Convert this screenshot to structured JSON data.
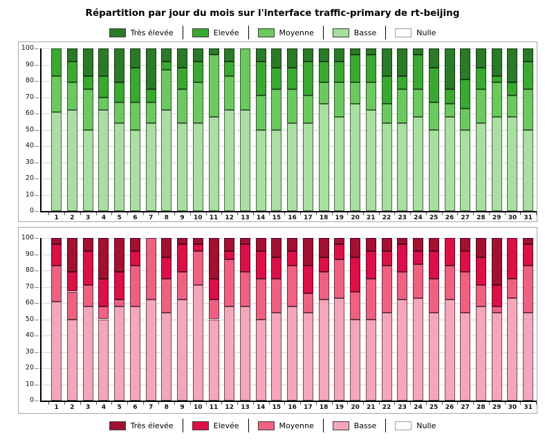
{
  "title": "Répartition par jour du mois sur l'interface traffic-primary de rt-beijing",
  "legends": {
    "top": {
      "items": [
        {
          "label": "Très élevée",
          "color": "#2b7a28"
        },
        {
          "label": "Elevée",
          "color": "#3aa831"
        },
        {
          "label": "Moyenne",
          "color": "#6cc95f"
        },
        {
          "label": "Basse",
          "color": "#a9dfa0"
        },
        {
          "label": "Nulle",
          "color": "#ffffff"
        }
      ]
    },
    "bottom": {
      "items": [
        {
          "label": "Très élevée",
          "color": "#a21033"
        },
        {
          "label": "Elevée",
          "color": "#dc1048"
        },
        {
          "label": "Moyenne",
          "color": "#ee6183"
        },
        {
          "label": "Basse",
          "color": "#f5a6ba"
        },
        {
          "label": "Nulle",
          "color": "#ffffff"
        }
      ]
    }
  },
  "chart_data": [
    {
      "type": "bar",
      "stacked": true,
      "unit": "percent_of_day",
      "legend_position": "top",
      "palette_name": "green",
      "categories": [
        1,
        2,
        3,
        4,
        5,
        6,
        7,
        8,
        9,
        10,
        11,
        12,
        13,
        14,
        15,
        16,
        17,
        18,
        19,
        20,
        21,
        22,
        23,
        24,
        25,
        26,
        27,
        28,
        29,
        30,
        31
      ],
      "ylim": [
        0,
        100
      ],
      "yticks": [
        0,
        10,
        20,
        30,
        40,
        50,
        60,
        70,
        80,
        90,
        100
      ],
      "grid": true,
      "series": [
        {
          "key": "basse",
          "name": "Basse",
          "color": "#a9dfa0",
          "values": [
            61,
            62,
            50,
            62,
            54,
            50,
            54,
            62,
            54,
            54,
            58,
            62,
            62,
            50,
            50,
            54,
            54,
            66,
            58,
            66,
            62,
            54,
            54,
            58,
            50,
            58,
            50,
            54,
            58,
            58,
            50
          ]
        },
        {
          "key": "moyenne",
          "name": "Moyenne",
          "color": "#6cc95f",
          "values": [
            22,
            17,
            25,
            8,
            13,
            17,
            13,
            25,
            21,
            25,
            38,
            21,
            38,
            21,
            25,
            21,
            17,
            13,
            21,
            13,
            17,
            12,
            21,
            17,
            17,
            8,
            13,
            21,
            21,
            13,
            25
          ]
        },
        {
          "key": "elevee",
          "name": "Elevée",
          "color": "#3aa831",
          "values": [
            17,
            13,
            8,
            13,
            12,
            21,
            8,
            5,
            13,
            13,
            0,
            9,
            0,
            21,
            13,
            13,
            21,
            13,
            13,
            17,
            17,
            17,
            8,
            21,
            21,
            9,
            18,
            13,
            4,
            8,
            17
          ]
        },
        {
          "key": "tres_elevee",
          "name": "Très élevée",
          "color": "#2b7a28",
          "values": [
            0,
            8,
            17,
            17,
            21,
            12,
            25,
            8,
            12,
            8,
            4,
            8,
            0,
            8,
            12,
            12,
            8,
            8,
            8,
            4,
            4,
            17,
            17,
            4,
            12,
            25,
            19,
            12,
            17,
            21,
            8
          ]
        },
        {
          "key": "nulle",
          "name": "Nulle",
          "color": "#ffffff",
          "values": [
            0,
            0,
            0,
            0,
            0,
            0,
            0,
            0,
            0,
            0,
            0,
            0,
            0,
            0,
            0,
            0,
            0,
            0,
            0,
            0,
            0,
            0,
            0,
            0,
            0,
            0,
            0,
            0,
            0,
            0,
            0
          ]
        }
      ]
    },
    {
      "type": "bar",
      "stacked": true,
      "unit": "percent_of_day",
      "legend_position": "bottom",
      "palette_name": "red",
      "categories": [
        1,
        2,
        3,
        4,
        5,
        6,
        7,
        8,
        9,
        10,
        11,
        12,
        13,
        14,
        15,
        16,
        17,
        18,
        19,
        20,
        21,
        22,
        23,
        24,
        25,
        26,
        27,
        28,
        29,
        30,
        31
      ],
      "ylim": [
        0,
        100
      ],
      "yticks": [
        0,
        10,
        20,
        30,
        40,
        50,
        60,
        70,
        80,
        90,
        100
      ],
      "grid": true,
      "series": [
        {
          "key": "basse",
          "name": "Basse",
          "color": "#f5a6ba",
          "values": [
            61,
            50,
            58,
            50,
            58,
            58,
            62,
            54,
            62,
            71,
            50,
            58,
            58,
            50,
            54,
            58,
            54,
            62,
            63,
            50,
            50,
            54,
            62,
            63,
            54,
            62,
            54,
            58,
            54,
            63,
            54
          ]
        },
        {
          "key": "moyenne",
          "name": "Moyenne",
          "color": "#ee6183",
          "values": [
            22,
            17,
            13,
            8,
            4,
            25,
            38,
            21,
            17,
            21,
            12,
            29,
            21,
            25,
            21,
            25,
            12,
            17,
            24,
            17,
            25,
            29,
            17,
            21,
            21,
            21,
            25,
            13,
            4,
            12,
            29
          ]
        },
        {
          "key": "elevee",
          "name": "Elevée",
          "color": "#dc1048",
          "values": [
            13,
            12,
            21,
            17,
            17,
            9,
            0,
            13,
            17,
            4,
            13,
            5,
            17,
            17,
            13,
            9,
            17,
            9,
            9,
            21,
            17,
            9,
            17,
            8,
            17,
            17,
            13,
            17,
            13,
            25,
            13
          ]
        },
        {
          "key": "tres_elevee",
          "name": "Très élevée",
          "color": "#a21033",
          "values": [
            4,
            21,
            8,
            25,
            21,
            8,
            0,
            12,
            4,
            4,
            25,
            8,
            4,
            8,
            12,
            8,
            17,
            12,
            4,
            12,
            8,
            8,
            4,
            8,
            8,
            0,
            8,
            12,
            29,
            0,
            4
          ]
        },
        {
          "key": "nulle",
          "name": "Nulle",
          "color": "#ffffff",
          "values": [
            0,
            0,
            0,
            0,
            0,
            0,
            0,
            0,
            0,
            0,
            0,
            0,
            0,
            0,
            0,
            0,
            0,
            0,
            0,
            0,
            0,
            0,
            0,
            0,
            0,
            0,
            0,
            0,
            0,
            0,
            0
          ]
        }
      ]
    }
  ]
}
